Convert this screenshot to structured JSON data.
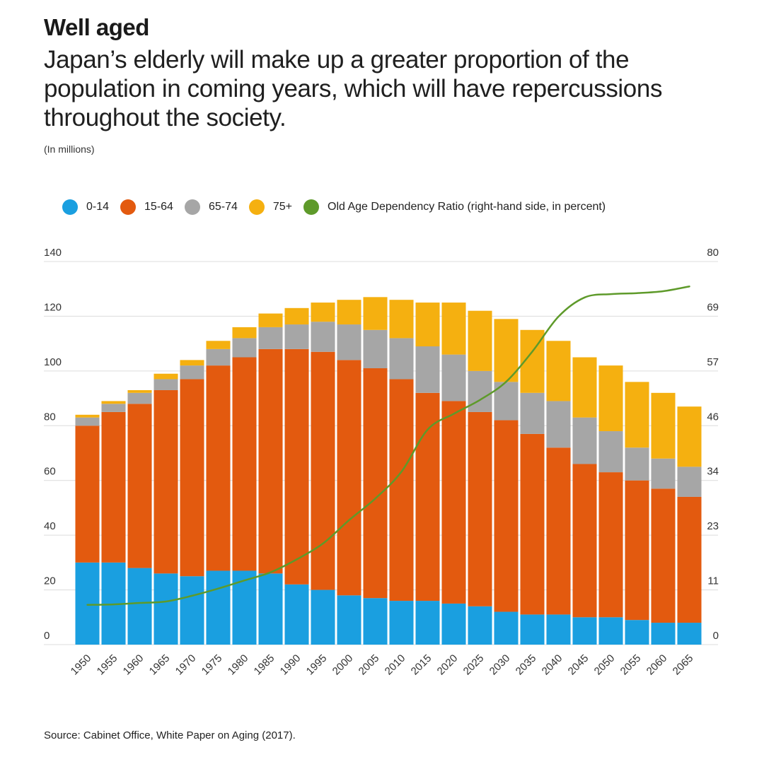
{
  "header": {
    "title": "Well aged",
    "subtitle": "Japan’s elderly will make up a greater proportion of the population in coming years, which will have repercussions throughout the society.",
    "unit": "(In millions)"
  },
  "legend": [
    {
      "label": "0-14",
      "color": "#1a9fe0"
    },
    {
      "label": "15-64",
      "color": "#e35a0f"
    },
    {
      "label": "65-74",
      "color": "#a6a6a6"
    },
    {
      "label": "75+",
      "color": "#f5b010"
    },
    {
      "label": "Old Age Dependency Ratio (right-hand side, in percent)",
      "color": "#5e9a2a"
    }
  ],
  "source": "Source:  Cabinet Office, White Paper on Aging (2017).",
  "chart_data": {
    "type": "bar",
    "stacked": true,
    "title": "Well aged",
    "ylabel": "(In millions)",
    "ylim": [
      0,
      140
    ],
    "y_ticks": [
      "0",
      "20",
      "40",
      "60",
      "80",
      "100",
      "120",
      "140"
    ],
    "y2_ticks": [
      "0",
      "11",
      "23",
      "34",
      "46",
      "57",
      "69",
      "80"
    ],
    "y2lim": [
      0,
      80
    ],
    "categories": [
      "1950",
      "1955",
      "1960",
      "1965",
      "1970",
      "1975",
      "1980",
      "1985",
      "1990",
      "1995",
      "2000",
      "2005",
      "2010",
      "2015",
      "2020",
      "2025",
      "2030",
      "2035",
      "2040",
      "2045",
      "2050",
      "2055",
      "2060",
      "2065"
    ],
    "series": [
      {
        "name": "0-14",
        "color": "#1a9fe0",
        "values": [
          30,
          30,
          28,
          26,
          25,
          27,
          27,
          26,
          22,
          20,
          18,
          17,
          16,
          16,
          15,
          14,
          12,
          11,
          11,
          10,
          10,
          9,
          8,
          8
        ]
      },
      {
        "name": "15-64",
        "color": "#e35a0f",
        "values": [
          50,
          55,
          60,
          67,
          72,
          75,
          78,
          82,
          86,
          87,
          86,
          84,
          81,
          76,
          74,
          71,
          70,
          66,
          61,
          56,
          53,
          51,
          49,
          46
        ]
      },
      {
        "name": "65-74",
        "color": "#a6a6a6",
        "values": [
          3,
          3,
          4,
          4,
          5,
          6,
          7,
          8,
          9,
          11,
          13,
          14,
          15,
          17,
          17,
          15,
          14,
          15,
          17,
          17,
          15,
          12,
          11,
          11
        ]
      },
      {
        "name": "75+",
        "color": "#f5b010",
        "values": [
          1,
          1,
          1,
          2,
          2,
          3,
          4,
          5,
          6,
          7,
          9,
          12,
          14,
          16,
          19,
          22,
          23,
          23,
          22,
          22,
          24,
          24,
          24,
          22
        ]
      }
    ],
    "line": {
      "name": "Old Age Dependency Ratio (right-hand side, in percent)",
      "color": "#5e9a2a",
      "values": [
        8.3,
        8.4,
        8.7,
        9.0,
        10.2,
        11.7,
        13.4,
        15.1,
        17.8,
        21.1,
        26.0,
        30.5,
        36.1,
        44.9,
        48.2,
        51.1,
        54.9,
        61.2,
        68.5,
        72.5,
        73.2,
        73.4,
        73.8,
        74.8
      ]
    },
    "grid": true,
    "legend_position": "top"
  }
}
